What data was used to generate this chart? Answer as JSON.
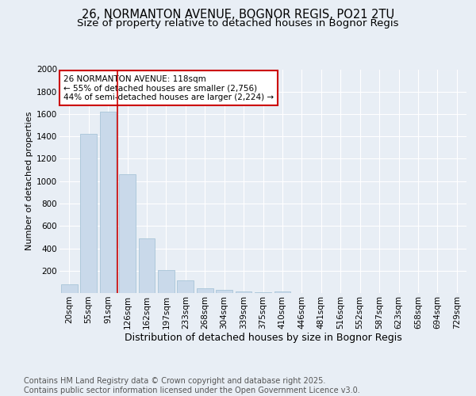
{
  "title1": "26, NORMANTON AVENUE, BOGNOR REGIS, PO21 2TU",
  "title2": "Size of property relative to detached houses in Bognor Regis",
  "xlabel": "Distribution of detached houses by size in Bognor Regis",
  "ylabel": "Number of detached properties",
  "categories": [
    "20sqm",
    "55sqm",
    "91sqm",
    "126sqm",
    "162sqm",
    "197sqm",
    "233sqm",
    "268sqm",
    "304sqm",
    "339sqm",
    "375sqm",
    "410sqm",
    "446sqm",
    "481sqm",
    "516sqm",
    "552sqm",
    "587sqm",
    "623sqm",
    "658sqm",
    "694sqm",
    "729sqm"
  ],
  "values": [
    80,
    1420,
    1620,
    1060,
    490,
    205,
    110,
    40,
    30,
    15,
    10,
    15,
    0,
    0,
    0,
    0,
    0,
    0,
    0,
    0,
    0
  ],
  "bar_color": "#c9d9ea",
  "bar_edge_color": "#a8c4d8",
  "vline_color": "#cc0000",
  "annotation_text": "26 NORMANTON AVENUE: 118sqm\n← 55% of detached houses are smaller (2,756)\n44% of semi-detached houses are larger (2,224) →",
  "annotation_box_color": "#ffffff",
  "annotation_box_edge": "#cc0000",
  "ylim": [
    0,
    2000
  ],
  "yticks": [
    0,
    200,
    400,
    600,
    800,
    1000,
    1200,
    1400,
    1600,
    1800,
    2000
  ],
  "bg_color": "#e8eef5",
  "plot_bg_color": "#e8eef5",
  "footer1": "Contains HM Land Registry data © Crown copyright and database right 2025.",
  "footer2": "Contains public sector information licensed under the Open Government Licence v3.0.",
  "title_fontsize": 10.5,
  "subtitle_fontsize": 9.5,
  "xlabel_fontsize": 9,
  "ylabel_fontsize": 8,
  "tick_fontsize": 7.5,
  "annotation_fontsize": 7.5,
  "footer_fontsize": 7
}
